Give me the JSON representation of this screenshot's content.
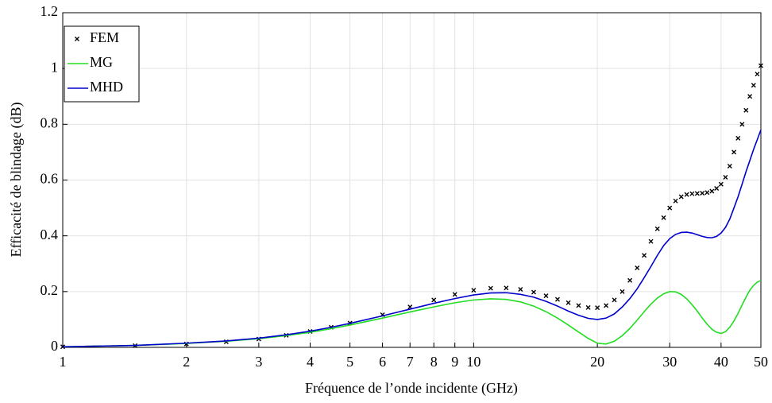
{
  "chart_data": {
    "type": "line",
    "xlabel": "Fréquence de l’onde incidente (GHz)",
    "ylabel": "Efficacité de blindage (dB)",
    "xscale": "log",
    "grid": true,
    "legend": "upper left",
    "x": [
      1,
      1.5,
      2,
      2.5,
      3,
      3.5,
      4,
      4.5,
      5,
      6,
      7,
      8,
      9,
      10,
      11,
      12,
      13,
      14,
      15,
      16,
      17,
      18,
      19,
      20,
      21,
      22,
      23,
      24,
      25,
      26,
      27,
      28,
      29,
      30,
      31,
      32,
      33,
      34,
      35,
      36,
      37,
      38,
      39,
      40,
      41,
      42,
      43,
      44,
      45,
      46,
      47,
      48,
      49,
      50
    ],
    "series": [
      {
        "name": "FEM",
        "color": "#000000",
        "style": "markers",
        "values": [
          0.002,
          0.006,
          0.012,
          0.02,
          0.03,
          0.043,
          0.057,
          0.072,
          0.087,
          0.117,
          0.145,
          0.17,
          0.19,
          0.205,
          0.212,
          0.213,
          0.208,
          0.198,
          0.185,
          0.172,
          0.16,
          0.15,
          0.143,
          0.142,
          0.15,
          0.17,
          0.2,
          0.24,
          0.285,
          0.33,
          0.38,
          0.425,
          0.465,
          0.5,
          0.525,
          0.54,
          0.548,
          0.551,
          0.552,
          0.553,
          0.555,
          0.56,
          0.57,
          0.585,
          0.61,
          0.65,
          0.7,
          0.75,
          0.8,
          0.85,
          0.9,
          0.94,
          0.98,
          1.01
        ]
      },
      {
        "name": "MG",
        "color": "#22dd22",
        "style": "line",
        "values": [
          0.002,
          0.007,
          0.014,
          0.022,
          0.031,
          0.042,
          0.054,
          0.067,
          0.08,
          0.105,
          0.127,
          0.145,
          0.16,
          0.17,
          0.174,
          0.172,
          0.163,
          0.148,
          0.128,
          0.105,
          0.08,
          0.055,
          0.032,
          0.015,
          0.012,
          0.022,
          0.042,
          0.068,
          0.098,
          0.128,
          0.155,
          0.177,
          0.192,
          0.2,
          0.199,
          0.19,
          0.174,
          0.153,
          0.13,
          0.105,
          0.083,
          0.065,
          0.054,
          0.05,
          0.056,
          0.072,
          0.095,
          0.122,
          0.152,
          0.18,
          0.205,
          0.222,
          0.234,
          0.24
        ]
      },
      {
        "name": "MHD",
        "color": "#0000cc",
        "style": "line",
        "values": [
          0.002,
          0.007,
          0.015,
          0.023,
          0.033,
          0.045,
          0.058,
          0.072,
          0.086,
          0.113,
          0.137,
          0.158,
          0.175,
          0.188,
          0.195,
          0.196,
          0.19,
          0.18,
          0.165,
          0.148,
          0.13,
          0.115,
          0.104,
          0.1,
          0.105,
          0.12,
          0.145,
          0.175,
          0.21,
          0.25,
          0.29,
          0.33,
          0.365,
          0.39,
          0.405,
          0.412,
          0.413,
          0.41,
          0.404,
          0.398,
          0.394,
          0.393,
          0.398,
          0.41,
          0.43,
          0.46,
          0.5,
          0.54,
          0.585,
          0.63,
          0.67,
          0.71,
          0.745,
          0.78
        ]
      }
    ],
    "xlim": [
      1,
      50
    ],
    "xticks": [
      1,
      2,
      3,
      4,
      5,
      6,
      7,
      8,
      9,
      10,
      20,
      30,
      40,
      50
    ],
    "ylim": [
      0,
      1.2
    ],
    "yticks": [
      0,
      0.2,
      0.4,
      0.6,
      0.8,
      1,
      1.2
    ]
  }
}
